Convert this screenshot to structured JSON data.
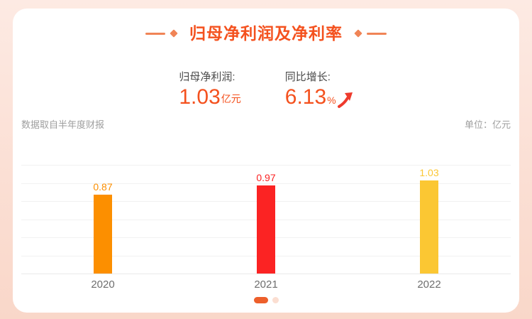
{
  "header": {
    "title": "归母净利润及净利率"
  },
  "stats": [
    {
      "label": "归母净利润:",
      "value": "1.03",
      "unit": "亿元"
    },
    {
      "label": "同比增长:",
      "value": "6.13",
      "unit": "%",
      "trend": "up"
    }
  ],
  "notes": {
    "source": "数据取自半年度财报",
    "unit": "单位：亿元"
  },
  "chart_data": {
    "type": "bar",
    "categories": [
      "2020",
      "2021",
      "2022"
    ],
    "values": [
      0.87,
      0.97,
      1.03
    ],
    "value_labels": [
      "0.87",
      "0.97",
      "1.03"
    ],
    "bar_colors": [
      "#fc8f00",
      "#fb2323",
      "#fbc733"
    ],
    "title": "归母净利润及净利率",
    "xlabel": "",
    "ylabel": "亿元",
    "ylim": [
      0,
      1.2
    ],
    "grid_step": 0.2,
    "grid": true,
    "legend": false,
    "y_tick_labels_shown": false
  },
  "pagination": {
    "dots": 2,
    "active_index": 0
  },
  "colors": {
    "accent": "#f4511e",
    "title_decoration": "#f08456",
    "arrow": "#ee3a2c",
    "active_dot": "#ed5f2b",
    "inactive_dot": "#fbded1",
    "background_top": "#fdeae3",
    "background_bottom": "#f9d7c9"
  }
}
